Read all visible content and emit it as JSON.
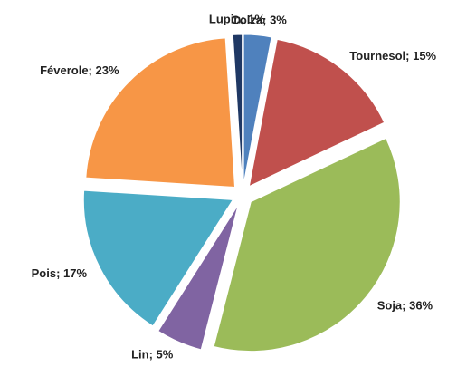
{
  "chart_data": {
    "type": "pie",
    "values": [
      3,
      15,
      36,
      5,
      17,
      23,
      1
    ],
    "value_labels": [
      "Colza; 3%",
      "Tournesol; 15%",
      "Soja; 36%",
      "Lin; 5%",
      "Pois; 17%",
      "Féverole; 23%",
      "Lupin; 1%"
    ],
    "colors": [
      "#4f81bd",
      "#c0504d",
      "#9bbb59",
      "#8064a2",
      "#4bacc6",
      "#f79646",
      "#1f3864"
    ],
    "exploded": true
  }
}
